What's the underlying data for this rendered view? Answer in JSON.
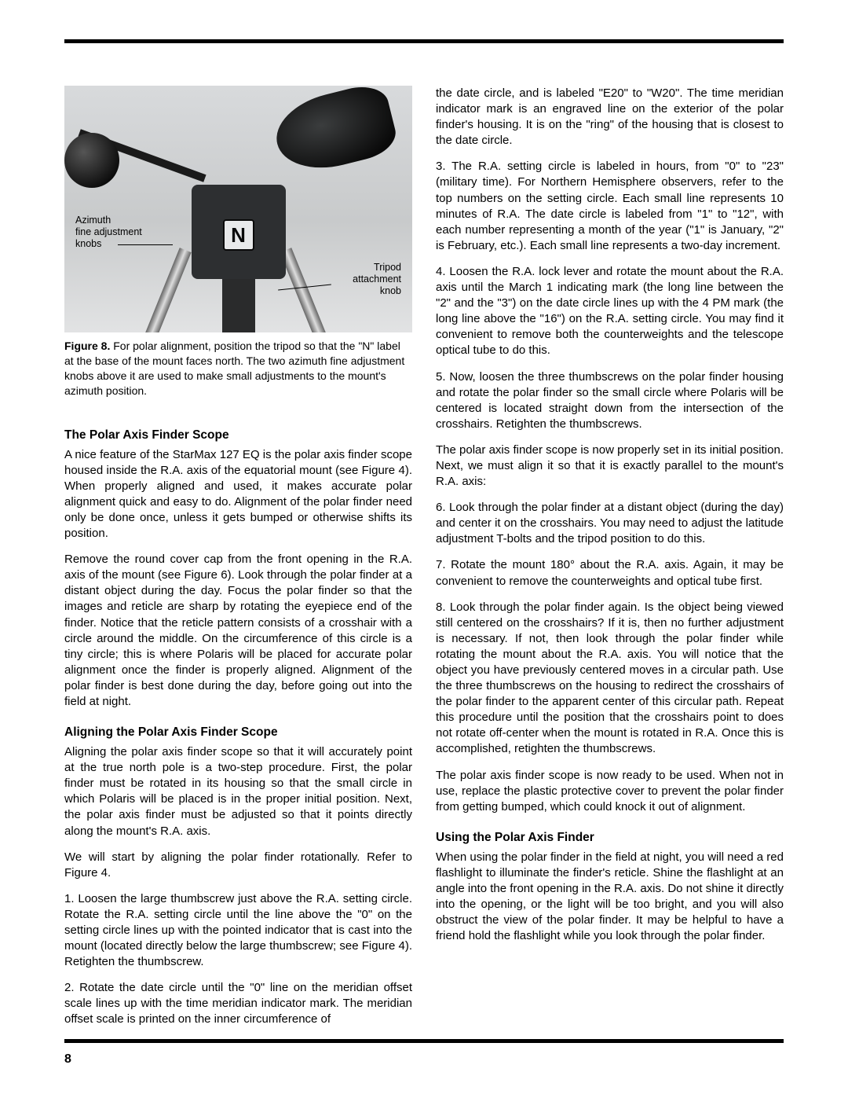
{
  "page_number": "8",
  "figure": {
    "n_label": "N",
    "label_azimuth_l1": "Azimuth",
    "label_azimuth_l2": "fine adjustment",
    "label_azimuth_l3": "knobs",
    "label_tripod_l1": "Tripod",
    "label_tripod_l2": "attachment",
    "label_tripod_l3": "knob",
    "caption_bold": "Figure 8.",
    "caption_rest": " For polar alignment, position the tripod so that the \"N\" label at the base of the mount faces north. The two azimuth fine adjustment knobs above it are used to make small adjustments to the mount's azimuth position."
  },
  "left": {
    "h1": "The Polar Axis Finder Scope",
    "p1": "A nice feature of the StarMax 127 EQ is the polar axis finder scope housed inside the R.A. axis of the equatorial mount (see Figure 4). When properly aligned and used, it makes accurate polar alignment quick and easy to do. Alignment of the polar finder need only be done once, unless it gets bumped or otherwise shifts its position.",
    "p2": "Remove the round cover cap from the front opening in the R.A. axis of the mount (see Figure 6). Look through the polar finder at a distant object during the day. Focus the polar finder so that the images and reticle are sharp by rotating the eyepiece end of the finder. Notice that the reticle pattern consists of a crosshair with a circle around the middle. On the circumference of this circle is a tiny circle; this is where Polaris will be placed for accurate polar alignment once the finder is properly aligned. Alignment of the polar finder is best done during the day, before going out into the field at night.",
    "h2": "Aligning the Polar Axis Finder Scope",
    "p3": "Aligning the polar axis finder scope so that it will accurately point at the true north pole is a two-step procedure. First, the polar finder must be rotated in its housing so that the small circle in which Polaris will be placed is in the proper initial position. Next, the polar axis finder must be adjusted so that it points directly along the mount's R.A. axis.",
    "p4": "We will start by aligning the polar finder rotationally. Refer to Figure 4.",
    "p5": "1.   Loosen the large thumbscrew just above the R.A. setting circle. Rotate the R.A. setting circle until the line above the \"0\" on the setting circle lines up with the pointed indicator that is cast into the mount (located directly below the large thumbscrew; see Figure 4). Retighten the thumbscrew.",
    "p6": "2. Rotate the date circle until the \"0\" line on the meridian offset scale lines up with the time meridian indicator mark. The meridian offset scale is printed on the inner circumference of"
  },
  "right": {
    "p1": "the date circle, and is labeled \"E20\" to \"W20\". The time meridian indicator mark is an engraved line on the exterior of the polar finder's housing. It is on the \"ring\" of the housing that is closest to the date circle.",
    "p2": "3. The R.A. setting circle is labeled in hours, from \"0\" to \"23\" (military time). For Northern Hemisphere observers, refer to the top numbers on the setting circle. Each small line represents 10 minutes of R.A. The date circle is labeled from \"1\" to \"12\", with each number representing a month of the year (\"1\" is January, \"2\" is February, etc.). Each small line represents a two-day increment.",
    "p3": "4. Loosen the R.A. lock lever and rotate the mount about the R.A. axis until the March 1 indicating mark (the long line between the \"2\" and the \"3\") on the date circle lines up with the 4 PM mark (the long line above the \"16\") on the R.A. setting circle. You may find it convenient to remove both the counterweights and the telescope optical tube to do this.",
    "p4": "5. Now, loosen the three thumbscrews on the polar finder housing and rotate the polar finder so the small circle where Polaris will be centered is located straight down from the intersection of the crosshairs. Retighten the thumbscrews.",
    "p5": "The polar axis finder scope is now properly set in its initial position. Next, we must align it so that it is exactly parallel to the mount's R.A. axis:",
    "p6": "6. Look through the polar finder at a distant object (during the day) and center it on the crosshairs. You may need to adjust the latitude adjustment T-bolts and the tripod position to do this.",
    "p7": "7. Rotate the mount 180° about the R.A. axis. Again, it may be convenient to remove the counterweights and optical tube first.",
    "p8": "8. Look through the polar finder again. Is the object being viewed still centered on the crosshairs? If it is, then no further adjustment is necessary. If not, then look through the polar finder while rotating the mount about the R.A. axis. You will notice that the object you have previously centered moves in a circular path. Use the three thumbscrews on the housing to redirect the crosshairs of the polar finder to the apparent center of this circular path. Repeat this procedure until the position that the crosshairs point to does not rotate off-center when the mount is rotated in R.A. Once this is accomplished, retighten the thumbscrews.",
    "p9": "The polar axis finder scope is now ready to be used. When not in use, replace the plastic protective cover to prevent the polar finder from getting bumped, which could knock it out of alignment.",
    "h1": "Using the Polar Axis Finder",
    "p10": "When using the polar finder in the field at night, you will need a red flashlight to illuminate the finder's reticle. Shine the flashlight at an angle into the front opening in the R.A. axis. Do not shine it directly into the opening, or the light will be too bright, and you will also obstruct the view of the polar finder. It may be helpful to have a friend hold the flashlight while you look through the polar finder."
  }
}
